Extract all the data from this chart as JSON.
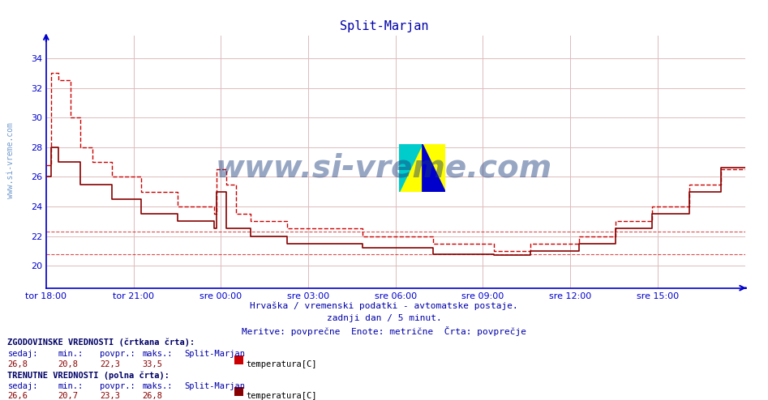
{
  "title": "Split-Marjan",
  "bg_color": "#ffffff",
  "plot_bg_color": "#ffffff",
  "grid_color": "#ddbbbb",
  "axis_color": "#0000cc",
  "title_color": "#0000aa",
  "x_tick_labels": [
    "tor 18:00",
    "tor 21:00",
    "sre 00:00",
    "sre 03:00",
    "sre 06:00",
    "sre 09:00",
    "sre 12:00",
    "sre 15:00"
  ],
  "x_tick_positions": [
    0,
    36,
    72,
    108,
    144,
    180,
    216,
    252
  ],
  "y_ticks": [
    20,
    22,
    24,
    26,
    28,
    30,
    32,
    34
  ],
  "ylim": [
    18.5,
    35.5
  ],
  "xlim": [
    0,
    288
  ],
  "ylabel_color": "#0000cc",
  "line_color_dashed": "#cc0000",
  "line_color_solid": "#880000",
  "watermark_color": "#1a3a7a",
  "subtitle1": "Hrvaška / vremenski podatki - avtomatske postaje.",
  "subtitle2": "zadnji dan / 5 minut.",
  "subtitle3": "Meritve: povprečne  Enote: metrične  Črta: povprečje",
  "footer_text_color": "#0000aa",
  "legend_color": "#880000",
  "hist_label": "ZGODOVINSKE VREDNOSTI (črtkana črta):",
  "curr_label": "TRENUTNE VREDNOSTI (polna črta):",
  "col_headers": [
    "sedaj:",
    "min.:",
    "povpr.:",
    "maks.:"
  ],
  "hist_values": [
    "26,8",
    "20,8",
    "22,3",
    "33,5"
  ],
  "curr_values": [
    "26,6",
    "20,7",
    "23,3",
    "26,8"
  ],
  "station_name": "Split-Marjan",
  "series_label": "temperatura[C]",
  "sidebar_text": "www.si-vreme.com",
  "sidebar_color": "#1155aa"
}
